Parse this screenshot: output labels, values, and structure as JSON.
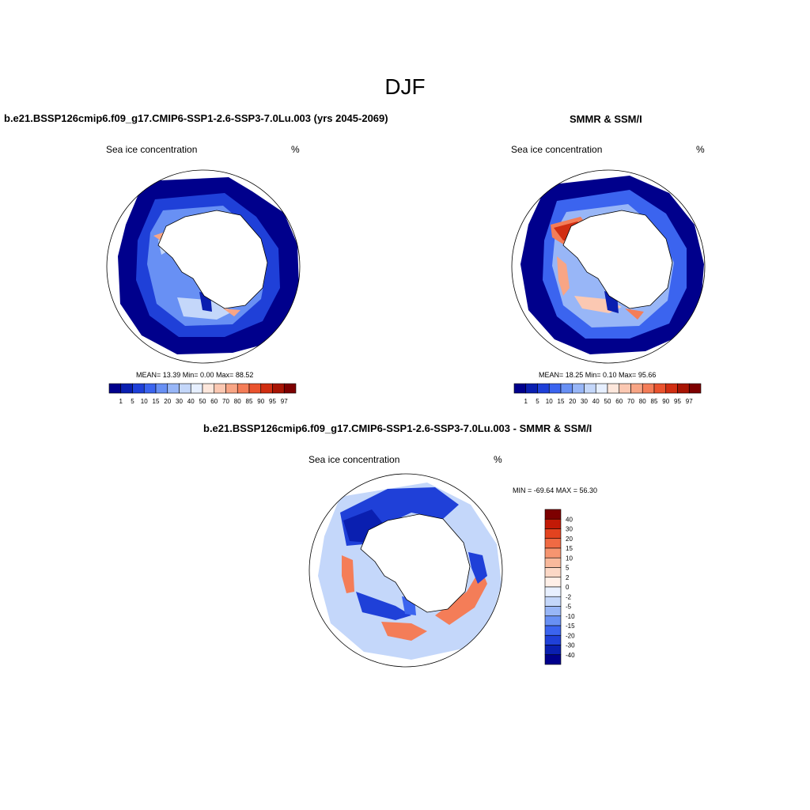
{
  "title": "DJF",
  "panels": {
    "model": {
      "title": "b.e21.BSSP126cmip6.f09_g17.CMIP6-SSP1-2.6-SSP3-7.0Lu.003 (yrs 2045-2069)",
      "variable": "Sea ice concentration",
      "units": "%",
      "stats": "MEAN=  13.39  Min=   0.00  Max=  88.52"
    },
    "obs": {
      "title": "SMMR & SSM/I",
      "variable": "Sea ice concentration",
      "units": "%",
      "stats": "MEAN=  18.25  Min=   0.10  Max=  95.66"
    },
    "diff": {
      "title": "b.e21.BSSP126cmip6.f09_g17.CMIP6-SSP1-2.6-SSP3-7.0Lu.003 - SMMR & SSM/I",
      "variable": "Sea ice concentration",
      "units": "%",
      "stats": "MIN = -69.64 MAX =  56.30"
    }
  },
  "colorbar_conc": {
    "labels": [
      "1",
      "5",
      "10",
      "15",
      "20",
      "30",
      "40",
      "50",
      "60",
      "70",
      "80",
      "85",
      "90",
      "95",
      "97"
    ],
    "colors": [
      "#00008c",
      "#0a1fb0",
      "#1f40d8",
      "#3b64ef",
      "#6890f4",
      "#98b6f7",
      "#c4d7fa",
      "#e6efff",
      "#fde7dc",
      "#fbc8b2",
      "#f8a585",
      "#f47d58",
      "#ea532e",
      "#d12e12",
      "#a81504",
      "#7d0000"
    ]
  },
  "colorbar_diff": {
    "labels": [
      "40",
      "30",
      "20",
      "15",
      "10",
      "5",
      "2",
      "0",
      "-2",
      "-5",
      "-10",
      "-15",
      "-20",
      "-30",
      "-40"
    ],
    "colors": [
      "#7d0000",
      "#c21a06",
      "#e3431f",
      "#f06a43",
      "#f69570",
      "#f9b99c",
      "#fcd8c6",
      "#fff0e8",
      "#e8f0ff",
      "#c4d7fa",
      "#98b6f7",
      "#6890f4",
      "#3b64ef",
      "#1f40d8",
      "#0a1fb0",
      "#00008c"
    ]
  }
}
